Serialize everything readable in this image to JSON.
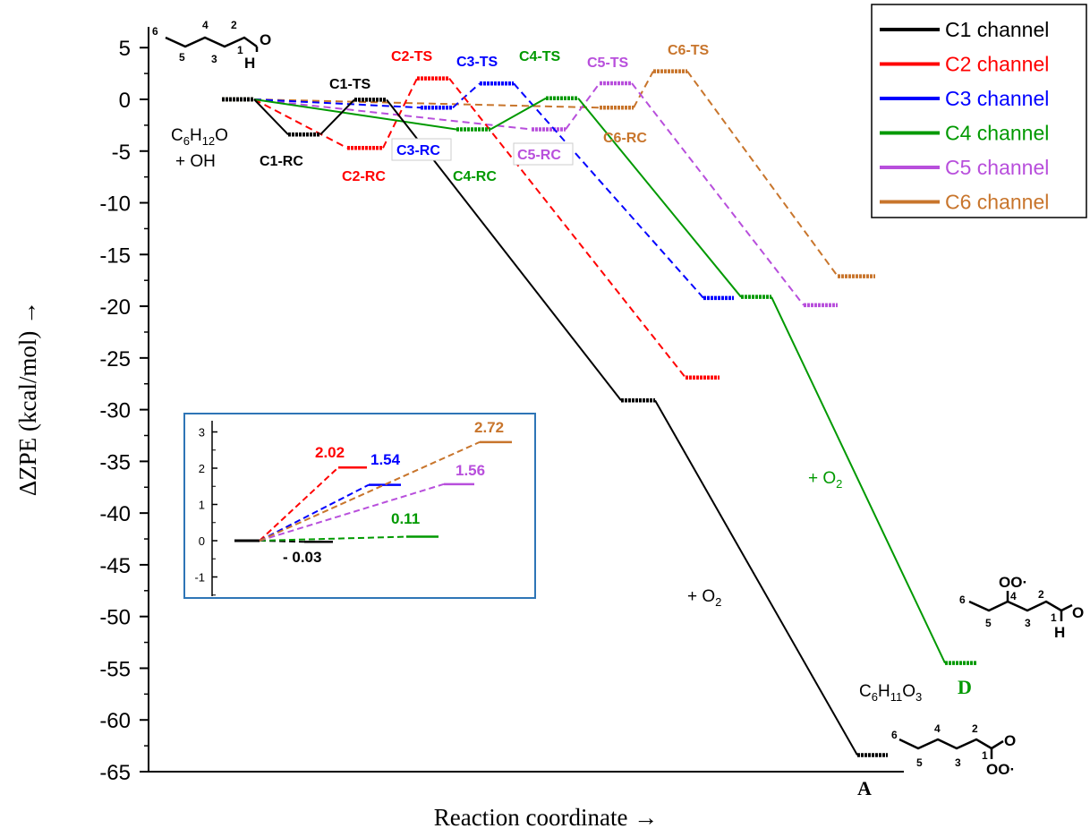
{
  "chart_data": {
    "type": "line",
    "xlabel": "Reaction coordinate →",
    "ylabel": "ΔZPE (kcal/mol) →",
    "ylim": [
      -65,
      5
    ],
    "yticks": [
      5,
      0,
      -5,
      -10,
      -15,
      -20,
      -25,
      -30,
      -35,
      -40,
      -45,
      -50,
      -55,
      -60,
      -65
    ],
    "grid": false,
    "legend_position": "top-right",
    "series": [
      {
        "name": "C1 channel",
        "color": "#000000",
        "dashed": false,
        "levels": [
          0,
          -3.4,
          -0.03,
          -29.1,
          -63.4
        ]
      },
      {
        "name": "C2 channel",
        "color": "#ff0000",
        "dashed": true,
        "levels": [
          0,
          -4.7,
          2.02,
          -26.9
        ]
      },
      {
        "name": "C3 channel",
        "color": "#0000ff",
        "dashed": true,
        "levels": [
          0,
          -0.8,
          1.54,
          -19.2
        ]
      },
      {
        "name": "C4 channel",
        "color": "#009900",
        "dashed": false,
        "levels": [
          0,
          -2.9,
          0.11,
          -19.1,
          -54.5
        ]
      },
      {
        "name": "C5 channel",
        "color": "#b84fdc",
        "dashed": true,
        "levels": [
          0,
          -2.9,
          1.56,
          -19.9
        ]
      },
      {
        "name": "C6 channel",
        "color": "#c8752c",
        "dashed": true,
        "levels": [
          0,
          -0.8,
          2.72,
          -17.1
        ]
      }
    ],
    "state_labels": [
      {
        "text": "C1-TS",
        "color": "#000000"
      },
      {
        "text": "C1-RC",
        "color": "#000000"
      },
      {
        "text": "C2-TS",
        "color": "#ff0000"
      },
      {
        "text": "C2-RC",
        "color": "#ff0000"
      },
      {
        "text": "C3-TS",
        "color": "#0000ff"
      },
      {
        "text": "C3-RC",
        "color": "#0000ff"
      },
      {
        "text": "C4-TS",
        "color": "#009900"
      },
      {
        "text": "C4-RC",
        "color": "#009900"
      },
      {
        "text": "C5-TS",
        "color": "#b84fdc"
      },
      {
        "text": "C5-RC",
        "color": "#b84fdc"
      },
      {
        "text": "C6-TS",
        "color": "#c8752c"
      },
      {
        "text": "C6-RC",
        "color": "#c8752c"
      }
    ],
    "inset": {
      "ylim": [
        -2,
        3.5
      ],
      "yticks": [
        3,
        2,
        1,
        0,
        -1
      ],
      "value_labels": [
        {
          "text": "2.02",
          "color": "#ff0000"
        },
        {
          "text": "1.54",
          "color": "#0000ff"
        },
        {
          "text": "2.72",
          "color": "#c8752c"
        },
        {
          "text": "1.56",
          "color": "#b84fdc"
        },
        {
          "text": "0.11",
          "color": "#009900"
        },
        {
          "text": "- 0.03",
          "color": "#000000"
        }
      ]
    }
  },
  "annotations": {
    "reactant_formula": "C6H12O",
    "reactant_plus": "+ OH",
    "o2_black": "+ O2",
    "o2_green": "+ O2",
    "product_formula": "C6H11O3",
    "product_a": "A",
    "product_d": "D"
  },
  "molecules": {
    "aldehyde_numbers": [
      "6",
      "4",
      "2",
      "5",
      "3",
      "1"
    ],
    "aldehyde_atoms": [
      "O",
      "H"
    ],
    "product_a_numbers": [
      "6",
      "4",
      "2",
      "5",
      "3",
      "1"
    ],
    "product_a_atoms": [
      "O",
      "OO·"
    ],
    "product_d_numbers": [
      "6",
      "4",
      "2",
      "5",
      "3",
      "1"
    ],
    "product_d_atoms": [
      "OO·",
      "O",
      "H"
    ]
  }
}
